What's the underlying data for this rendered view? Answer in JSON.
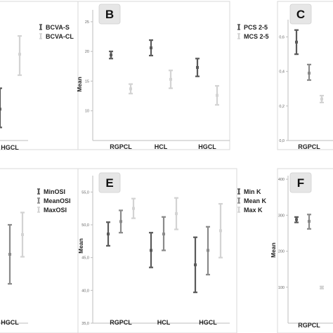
{
  "chart_data": [
    {
      "id": "A",
      "type": "errorbar",
      "panel_label": "",
      "ylabel": "",
      "categories": [
        "HGCL"
      ],
      "yticks": [],
      "ylim": [
        0,
        50
      ],
      "legend": {
        "placement": "top-right"
      },
      "series": [
        {
          "name": "BCVA-S",
          "color": "#5a5a5a",
          "values": [
            {
              "cat": 0,
              "low": 5,
              "mean": 12,
              "high": 20
            }
          ]
        },
        {
          "name": "BCVA-CL",
          "color": "#d3d3d3",
          "values": [
            {
              "cat": 0,
              "low": 25,
              "mean": 33,
              "high": 40
            }
          ]
        }
      ]
    },
    {
      "id": "B",
      "type": "errorbar",
      "panel_label": "B",
      "ylabel": "Mean",
      "categories": [
        "RGPCL",
        "HCL",
        "HGCL"
      ],
      "yticks": [
        "10",
        "15",
        "20",
        "25"
      ],
      "ylim": [
        5,
        27
      ],
      "legend": {
        "placement": "top-right"
      },
      "series": [
        {
          "name": "PCS 2-5",
          "color": "#5a5a5a",
          "values": [
            {
              "cat": 0,
              "low": 18.8,
              "mean": 19.4,
              "high": 20.0
            },
            {
              "cat": 1,
              "low": 19.3,
              "mean": 20.6,
              "high": 21.9
            },
            {
              "cat": 2,
              "low": 15.8,
              "mean": 17.3,
              "high": 18.8
            }
          ]
        },
        {
          "name": "MCS 2-5",
          "color": "#d3d3d3",
          "values": [
            {
              "cat": 0,
              "low": 12.9,
              "mean": 13.7,
              "high": 14.5
            },
            {
              "cat": 1,
              "low": 13.8,
              "mean": 15.3,
              "high": 16.8
            },
            {
              "cat": 2,
              "low": 11.0,
              "mean": 12.6,
              "high": 14.2
            }
          ]
        }
      ]
    },
    {
      "id": "C",
      "type": "errorbar",
      "panel_label": "C",
      "ylabel": "",
      "categories": [
        "RGPCL"
      ],
      "yticks": [
        "0,0",
        "0,2",
        "0,4",
        "0,6"
      ],
      "ylim": [
        0,
        0.7
      ],
      "legend": {
        "placement": "top-right"
      },
      "series": [
        {
          "name": "",
          "color": "#5a5a5a",
          "values": [
            {
              "cat": 0,
              "low": 0.5,
              "mean": 0.57,
              "high": 0.64
            }
          ]
        },
        {
          "name": "",
          "color": "#8a8a8a",
          "values": [
            {
              "cat": 0,
              "low": 0.35,
              "mean": 0.39,
              "high": 0.44
            }
          ]
        },
        {
          "name": "",
          "color": "#d3d3d3",
          "values": [
            {
              "cat": 0,
              "low": 0.22,
              "mean": 0.24,
              "high": 0.26
            }
          ]
        }
      ]
    },
    {
      "id": "D",
      "type": "errorbar",
      "panel_label": "",
      "ylabel": "",
      "categories": [
        "HGCL"
      ],
      "yticks": [],
      "ylim": [
        0,
        60
      ],
      "legend": {
        "placement": "top-right"
      },
      "series": [
        {
          "name": "MinOSI",
          "color": "#5a5a5a",
          "values": [
            {
              "cat": 0,
              "low": 18,
              "mean": 28,
              "high": 38
            }
          ]
        },
        {
          "name": "MeanOSI",
          "color": "#8a8a8a",
          "values": [
            {
              "cat": 0,
              "low": 16,
              "mean": 28,
              "high": 40
            }
          ]
        },
        {
          "name": "MaxOSI",
          "color": "#d3d3d3",
          "values": [
            {
              "cat": 0,
              "low": 27,
              "mean": 36,
              "high": 45
            }
          ]
        }
      ]
    },
    {
      "id": "E",
      "type": "errorbar",
      "panel_label": "E",
      "ylabel": "Mean",
      "categories": [
        "RGPCL",
        "HCL",
        "HGCL"
      ],
      "yticks": [
        "35,0",
        "40,0",
        "45,0",
        "50,0",
        "55,0"
      ],
      "ylim": [
        35,
        57.5
      ],
      "legend": {
        "placement": "top-right"
      },
      "series": [
        {
          "name": "Min K",
          "color": "#5a5a5a",
          "values": [
            {
              "cat": 0,
              "low": 46.8,
              "mean": 48.6,
              "high": 50.4
            },
            {
              "cat": 1,
              "low": 43.5,
              "mean": 46.1,
              "high": 48.8
            },
            {
              "cat": 2,
              "low": 39.7,
              "mean": 43.9,
              "high": 48.1
            }
          ]
        },
        {
          "name": "Mean K",
          "color": "#8a8a8a",
          "values": [
            {
              "cat": 0,
              "low": 48.8,
              "mean": 50.5,
              "high": 52.2
            },
            {
              "cat": 1,
              "low": 46.1,
              "mean": 48.6,
              "high": 51.2
            },
            {
              "cat": 2,
              "low": 42.4,
              "mean": 46.1,
              "high": 49.7
            }
          ]
        },
        {
          "name": "Max K",
          "color": "#d3d3d3",
          "values": [
            {
              "cat": 0,
              "low": 51.0,
              "mean": 52.5,
              "high": 54.0
            },
            {
              "cat": 1,
              "low": 49.3,
              "mean": 51.7,
              "high": 54.1
            },
            {
              "cat": 2,
              "low": 45.0,
              "mean": 49.1,
              "high": 53.2
            }
          ]
        }
      ]
    },
    {
      "id": "F",
      "type": "errorbar",
      "panel_label": "F",
      "ylabel": "Mean",
      "categories": [
        "RGPCL"
      ],
      "yticks": [
        "100",
        "200",
        "300",
        "400"
      ],
      "ylim": [
        0,
        410
      ],
      "legend": {
        "placement": "top-right"
      },
      "series": [
        {
          "name": "",
          "color": "#5a5a5a",
          "values": [
            {
              "cat": 0,
              "low": 280,
              "mean": 288,
              "high": 295
            }
          ]
        },
        {
          "name": "",
          "color": "#8a8a8a",
          "values": [
            {
              "cat": 0,
              "low": 262,
              "mean": 283,
              "high": 302
            }
          ]
        },
        {
          "name": "",
          "color": "#d3d3d3",
          "values": [
            {
              "cat": 0,
              "low": 96,
              "mean": 99,
              "high": 102
            }
          ]
        }
      ]
    }
  ]
}
